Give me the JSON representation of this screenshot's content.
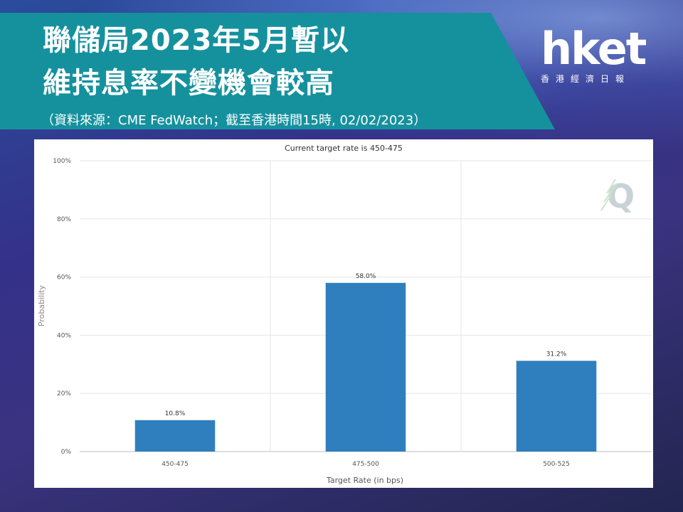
{
  "header": {
    "title_line1": "聯儲局2023年5月暫以",
    "title_line2": "維持息率不變機會較高",
    "source": "（資料來源：CME FedWatch；截至香港時間15時, 02/02/2023）"
  },
  "logo": {
    "word": "hket",
    "subtitle": "香港經濟日報"
  },
  "colors": {
    "banner": "#15919e",
    "bar": "#2f7fbe"
  },
  "watermark_icon": "fedwatch-q-icon",
  "chart_data": {
    "type": "bar",
    "title": "Current target rate is 450-475",
    "xlabel": "Target Rate (in bps)",
    "ylabel": "Probability",
    "categories": [
      "450-475",
      "475-500",
      "500-525"
    ],
    "values": [
      10.8,
      58.0,
      31.2
    ],
    "value_labels": [
      "10.8%",
      "58.0%",
      "31.2%"
    ],
    "ylim": [
      0,
      100
    ],
    "yticks": [
      "0%",
      "20%",
      "40%",
      "60%",
      "80%",
      "100%"
    ],
    "ytick_values": [
      0,
      20,
      40,
      60,
      80,
      100
    ],
    "grid": true,
    "legend": "none"
  }
}
